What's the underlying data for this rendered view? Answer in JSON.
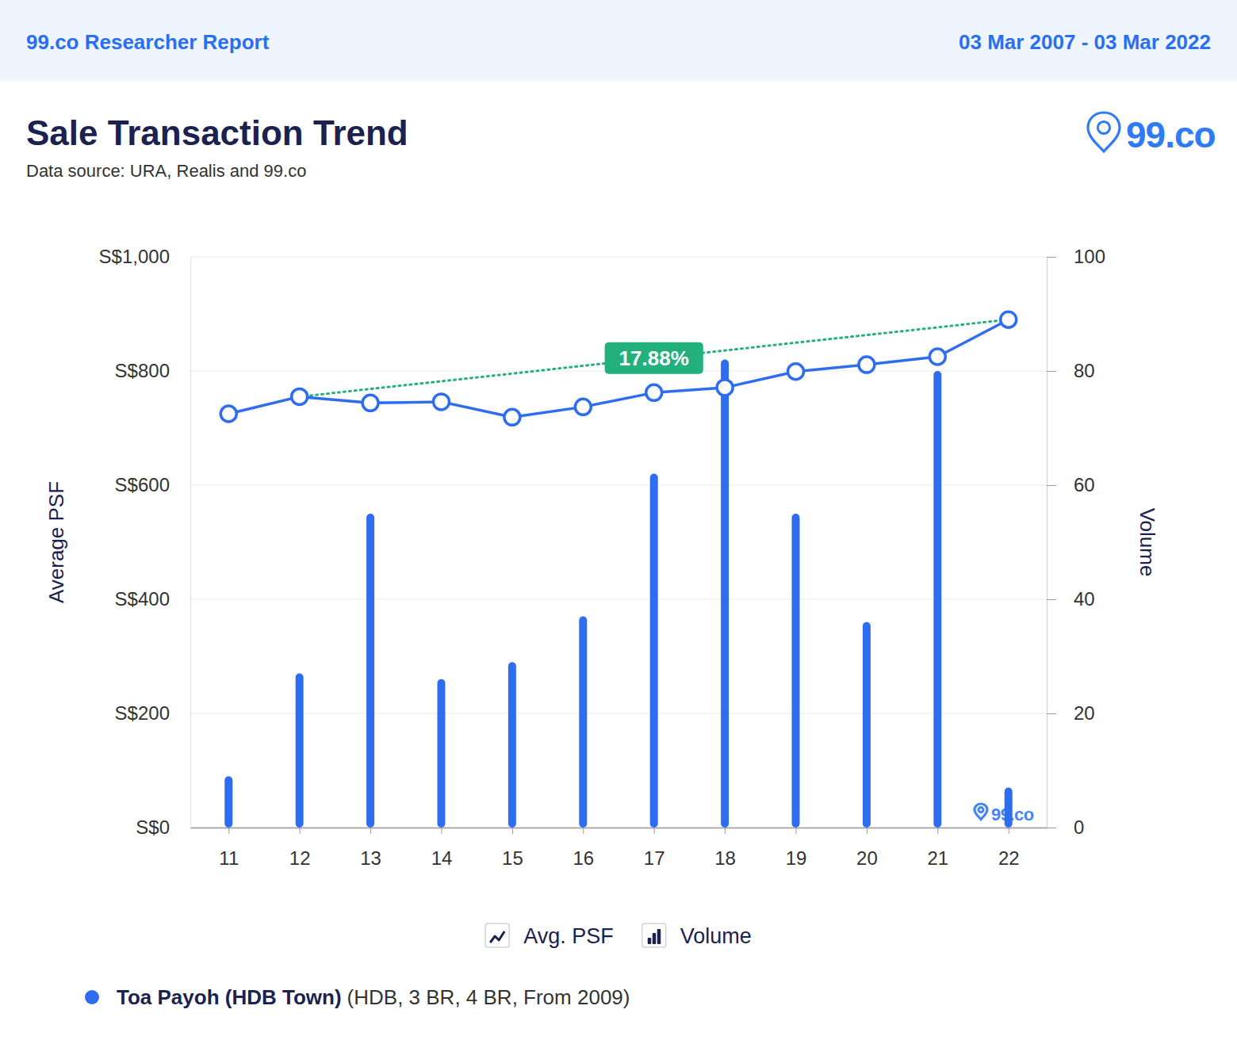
{
  "chart_data": {
    "type": "combo",
    "header_left": "99.co Researcher Report",
    "header_right": "03 Mar 2007 - 03 Mar 2022",
    "title": "Sale Transaction Trend",
    "subtitle": "Data source: URA, Realis and 99.co",
    "logo": "99.co",
    "watermark": "99.co",
    "y_label": "Average PSF",
    "y2_label": "Volume",
    "categories": [
      "11",
      "12",
      "13",
      "14",
      "15",
      "16",
      "17",
      "18",
      "19",
      "20",
      "21",
      "22"
    ],
    "series": [
      {
        "name": "Avg. PSF",
        "type": "line",
        "color": "#2f6df0",
        "marker": "circle",
        "values": [
          725,
          755,
          744,
          746,
          719,
          737,
          762,
          771,
          799,
          811,
          825,
          890
        ]
      },
      {
        "name": "Volume",
        "type": "bar",
        "color": "#2f6df0",
        "axis": "y2",
        "values": [
          9,
          27,
          55,
          26,
          29,
          37,
          62,
          82,
          55,
          36,
          80,
          7
        ]
      }
    ],
    "ylim": [
      0,
      1000
    ],
    "yticks": [
      {
        "value": 0,
        "label": "S$0"
      },
      {
        "value": 200,
        "label": "S$200"
      },
      {
        "value": 400,
        "label": "S$400"
      },
      {
        "value": 600,
        "label": "S$600"
      },
      {
        "value": 800,
        "label": "S$800"
      },
      {
        "value": 1000,
        "label": "S$1,000"
      }
    ],
    "y2lim": [
      0,
      100
    ],
    "y2ticks": [
      0,
      20,
      40,
      60,
      80,
      100
    ],
    "grid": true,
    "legend": "bottom",
    "annotations": [
      {
        "text": "17.88%",
        "line_style": "dotted",
        "from": {
          "x": "12",
          "y": 755
        },
        "to": {
          "x": "22",
          "y": 890
        }
      }
    ],
    "footnote": {
      "title": "Toa Payoh (HDB Town)",
      "detail": "(HDB, 3 BR, 4 BR, From 2009)"
    }
  }
}
